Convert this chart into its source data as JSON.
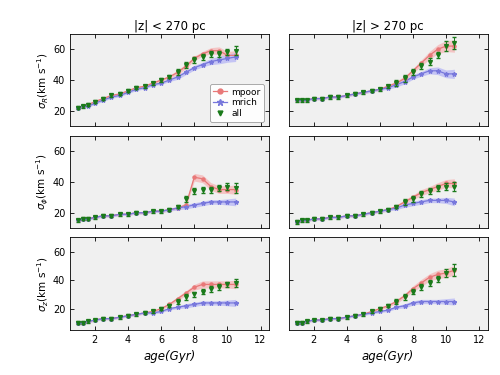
{
  "col_titles": [
    "|z| < 270 pc",
    "|z| > 270 pc"
  ],
  "row_ylabels": [
    "$\\sigma_R$(km s$^{-1}$)",
    "$\\sigma_\\phi$(km s$^{-1}$)",
    "$\\sigma_z$(km s$^{-1}$)"
  ],
  "xlabel": "age(Gyr)",
  "xlim": [
    0.5,
    12.5
  ],
  "xticks": [
    2,
    4,
    6,
    8,
    10,
    12
  ],
  "ylim_rows": [
    [
      10,
      70
    ],
    [
      10,
      70
    ],
    [
      5,
      70
    ]
  ],
  "yticks_rows": [
    [
      20,
      40,
      60
    ],
    [
      20,
      40,
      60
    ],
    [
      20,
      40,
      60
    ]
  ],
  "age_points": [
    1.0,
    1.3,
    1.6,
    2.0,
    2.5,
    3.0,
    3.5,
    4.0,
    4.5,
    5.0,
    5.5,
    6.0,
    6.5,
    7.0,
    7.5,
    8.0,
    8.5,
    9.0,
    9.5,
    10.0,
    10.5
  ],
  "panel_data": {
    "0_0": {
      "mpoor_y": [
        22,
        23,
        24,
        26,
        28,
        30,
        31,
        33,
        35,
        36,
        38,
        40,
        42,
        45,
        49,
        54,
        57,
        59,
        59,
        56,
        56
      ],
      "mpoor_yerr": [
        0.8,
        0.8,
        0.8,
        0.8,
        0.8,
        0.8,
        0.8,
        0.8,
        0.8,
        0.8,
        0.8,
        0.8,
        1.0,
        1.5,
        1.5,
        1.5,
        1.5,
        2.0,
        2.5,
        2.5,
        3.0
      ],
      "mrich_y": [
        22,
        23,
        23,
        25,
        27,
        29,
        30,
        32,
        34,
        35,
        37,
        38,
        40,
        42,
        45,
        48,
        50,
        52,
        53,
        54,
        55
      ],
      "mrich_yerr": [
        0.8,
        0.8,
        0.8,
        0.8,
        0.8,
        0.8,
        0.8,
        0.8,
        0.8,
        0.8,
        0.8,
        0.8,
        1.0,
        1.5,
        1.5,
        1.5,
        1.5,
        2.0,
        2.5,
        2.5,
        3.0
      ],
      "all_y": [
        22,
        23,
        24,
        26,
        28,
        30,
        31,
        33,
        35,
        36,
        38,
        40,
        42,
        45,
        50,
        53,
        55,
        57,
        57,
        58,
        59
      ],
      "all_yerr": [
        1,
        1,
        1,
        1,
        1,
        1,
        1,
        1,
        1,
        1,
        1,
        1,
        1,
        2,
        2,
        2,
        2,
        2,
        2,
        2,
        3
      ]
    },
    "0_1": {
      "mpoor_y": [
        27,
        27,
        27,
        28,
        28,
        29,
        29,
        30,
        31,
        32,
        33,
        34,
        36,
        38,
        41,
        46,
        51,
        56,
        60,
        62,
        62
      ],
      "mpoor_yerr": [
        0.8,
        0.8,
        0.8,
        0.8,
        0.8,
        0.8,
        0.8,
        0.8,
        0.8,
        0.8,
        0.8,
        0.8,
        1.0,
        1.5,
        1.5,
        1.5,
        2.0,
        2.5,
        3.0,
        3.5,
        4.0
      ],
      "mrich_y": [
        27,
        27,
        27,
        28,
        28,
        29,
        29,
        30,
        31,
        32,
        33,
        34,
        35,
        37,
        39,
        42,
        44,
        46,
        46,
        44,
        44
      ],
      "mrich_yerr": [
        0.8,
        0.8,
        0.8,
        0.8,
        0.8,
        0.8,
        0.8,
        0.8,
        0.8,
        0.8,
        0.8,
        0.8,
        1.0,
        1.5,
        1.5,
        1.5,
        1.5,
        2.0,
        2.5,
        2.5,
        3.0
      ],
      "all_y": [
        27,
        27,
        27,
        28,
        28,
        29,
        29,
        30,
        31,
        32,
        33,
        34,
        36,
        38,
        41,
        45,
        49,
        52,
        56,
        62,
        64
      ],
      "all_yerr": [
        1,
        1,
        1,
        1,
        1,
        1,
        1,
        1,
        1,
        1,
        1,
        1,
        1,
        2,
        2,
        2,
        2,
        2,
        2,
        3,
        4
      ]
    },
    "1_0": {
      "mpoor_y": [
        15,
        16,
        16,
        17,
        18,
        18,
        19,
        19,
        20,
        20,
        21,
        21,
        22,
        23,
        25,
        43,
        42,
        37,
        35,
        35,
        35
      ],
      "mpoor_yerr": [
        0.8,
        0.8,
        0.8,
        0.8,
        0.8,
        0.8,
        0.8,
        0.8,
        0.8,
        0.8,
        0.8,
        0.8,
        1.0,
        1.0,
        1.5,
        2.5,
        2.5,
        2.5,
        2.5,
        2.5,
        3.0
      ],
      "mrich_y": [
        15,
        16,
        16,
        17,
        18,
        18,
        19,
        19,
        20,
        20,
        21,
        21,
        22,
        23,
        24,
        25,
        26,
        27,
        27,
        27,
        27
      ],
      "mrich_yerr": [
        0.8,
        0.8,
        0.8,
        0.8,
        0.8,
        0.8,
        0.8,
        0.8,
        0.8,
        0.8,
        0.8,
        0.8,
        1.0,
        1.0,
        1.5,
        1.5,
        1.5,
        1.5,
        1.5,
        2.0,
        2.5
      ],
      "all_y": [
        15,
        16,
        16,
        17,
        18,
        18,
        19,
        19,
        20,
        20,
        21,
        21,
        22,
        24,
        29,
        34,
        35,
        35,
        36,
        37,
        36
      ],
      "all_yerr": [
        1,
        1,
        1,
        1,
        1,
        1,
        1,
        1,
        1,
        1,
        1,
        1,
        1,
        1,
        2,
        2,
        2,
        2,
        2,
        2,
        3
      ]
    },
    "1_1": {
      "mpoor_y": [
        14,
        15,
        15,
        16,
        16,
        17,
        17,
        18,
        18,
        19,
        20,
        21,
        22,
        24,
        27,
        30,
        33,
        35,
        37,
        39,
        39
      ],
      "mpoor_yerr": [
        0.8,
        0.8,
        0.8,
        0.8,
        0.8,
        0.8,
        0.8,
        0.8,
        0.8,
        0.8,
        0.8,
        0.8,
        1.0,
        1.0,
        1.5,
        1.5,
        2.0,
        2.0,
        2.5,
        2.5,
        3.0
      ],
      "mrich_y": [
        14,
        15,
        15,
        16,
        16,
        17,
        17,
        18,
        18,
        19,
        20,
        21,
        22,
        23,
        25,
        26,
        27,
        28,
        28,
        28,
        27
      ],
      "mrich_yerr": [
        0.8,
        0.8,
        0.8,
        0.8,
        0.8,
        0.8,
        0.8,
        0.8,
        0.8,
        0.8,
        0.8,
        0.8,
        1.0,
        1.0,
        1.5,
        1.5,
        1.5,
        1.5,
        1.5,
        2.0,
        2.5
      ],
      "all_y": [
        14,
        15,
        15,
        16,
        16,
        17,
        17,
        18,
        18,
        19,
        20,
        21,
        22,
        24,
        27,
        29,
        32,
        34,
        36,
        37,
        37
      ],
      "all_yerr": [
        1,
        1,
        1,
        1,
        1,
        1,
        1,
        1,
        1,
        1,
        1,
        1,
        1,
        1,
        2,
        2,
        2,
        2,
        2,
        2,
        3
      ]
    },
    "2_0": {
      "mpoor_y": [
        10,
        10,
        11,
        12,
        13,
        13,
        14,
        15,
        16,
        17,
        18,
        20,
        23,
        27,
        31,
        35,
        37,
        37,
        37,
        37,
        37
      ],
      "mpoor_yerr": [
        0.8,
        0.8,
        0.8,
        0.8,
        0.8,
        0.8,
        0.8,
        0.8,
        0.8,
        0.8,
        0.8,
        1.0,
        1.0,
        1.5,
        1.5,
        2.0,
        2.5,
        2.5,
        2.5,
        2.5,
        3.0
      ],
      "mrich_y": [
        10,
        10,
        11,
        12,
        13,
        13,
        14,
        15,
        16,
        17,
        17,
        18,
        20,
        21,
        22,
        23,
        24,
        24,
        24,
        24,
        24
      ],
      "mrich_yerr": [
        0.8,
        0.8,
        0.8,
        0.8,
        0.8,
        0.8,
        0.8,
        0.8,
        0.8,
        0.8,
        0.8,
        0.8,
        1.0,
        1.0,
        1.5,
        1.5,
        1.5,
        1.5,
        1.5,
        2.0,
        2.5
      ],
      "all_y": [
        10,
        10,
        11,
        12,
        13,
        13,
        14,
        15,
        16,
        17,
        18,
        20,
        22,
        25,
        28,
        30,
        32,
        34,
        35,
        37,
        38
      ],
      "all_yerr": [
        1,
        1,
        1,
        1,
        1,
        1,
        1,
        1,
        1,
        1,
        1,
        1,
        1,
        1.5,
        2,
        2,
        2,
        2,
        2,
        2,
        3
      ]
    },
    "2_1": {
      "mpoor_y": [
        10,
        10,
        11,
        12,
        12,
        13,
        13,
        14,
        15,
        16,
        18,
        20,
        22,
        25,
        29,
        34,
        38,
        42,
        44,
        45,
        47
      ],
      "mpoor_yerr": [
        0.8,
        0.8,
        0.8,
        0.8,
        0.8,
        0.8,
        0.8,
        0.8,
        0.8,
        0.8,
        0.8,
        1.0,
        1.0,
        1.5,
        1.5,
        2.0,
        2.5,
        2.5,
        3.0,
        3.0,
        3.5
      ],
      "mrich_y": [
        10,
        10,
        11,
        12,
        12,
        13,
        13,
        14,
        15,
        16,
        17,
        18,
        19,
        21,
        22,
        24,
        25,
        25,
        25,
        25,
        25
      ],
      "mrich_yerr": [
        0.8,
        0.8,
        0.8,
        0.8,
        0.8,
        0.8,
        0.8,
        0.8,
        0.8,
        0.8,
        0.8,
        0.8,
        1.0,
        1.0,
        1.5,
        1.5,
        1.5,
        1.5,
        1.5,
        2.0,
        2.5
      ],
      "all_y": [
        10,
        10,
        11,
        12,
        12,
        13,
        13,
        14,
        15,
        16,
        18,
        20,
        22,
        25,
        28,
        32,
        35,
        38,
        41,
        45,
        47
      ],
      "all_yerr": [
        1,
        1,
        1,
        1,
        1,
        1,
        1,
        1,
        1,
        1,
        1,
        1,
        1,
        1.5,
        2,
        2,
        2,
        2,
        2,
        3,
        4
      ]
    }
  },
  "mpoor_color": "#E87878",
  "mrich_color": "#7878DC",
  "all_color": "#1A7A1A",
  "mpoor_fill": "#F5C0C0",
  "mrich_fill": "#C0C0F5",
  "axes_bg": "#F0F0F0",
  "fig_bg": "#FFFFFF",
  "show_legend_panel": "0_0"
}
